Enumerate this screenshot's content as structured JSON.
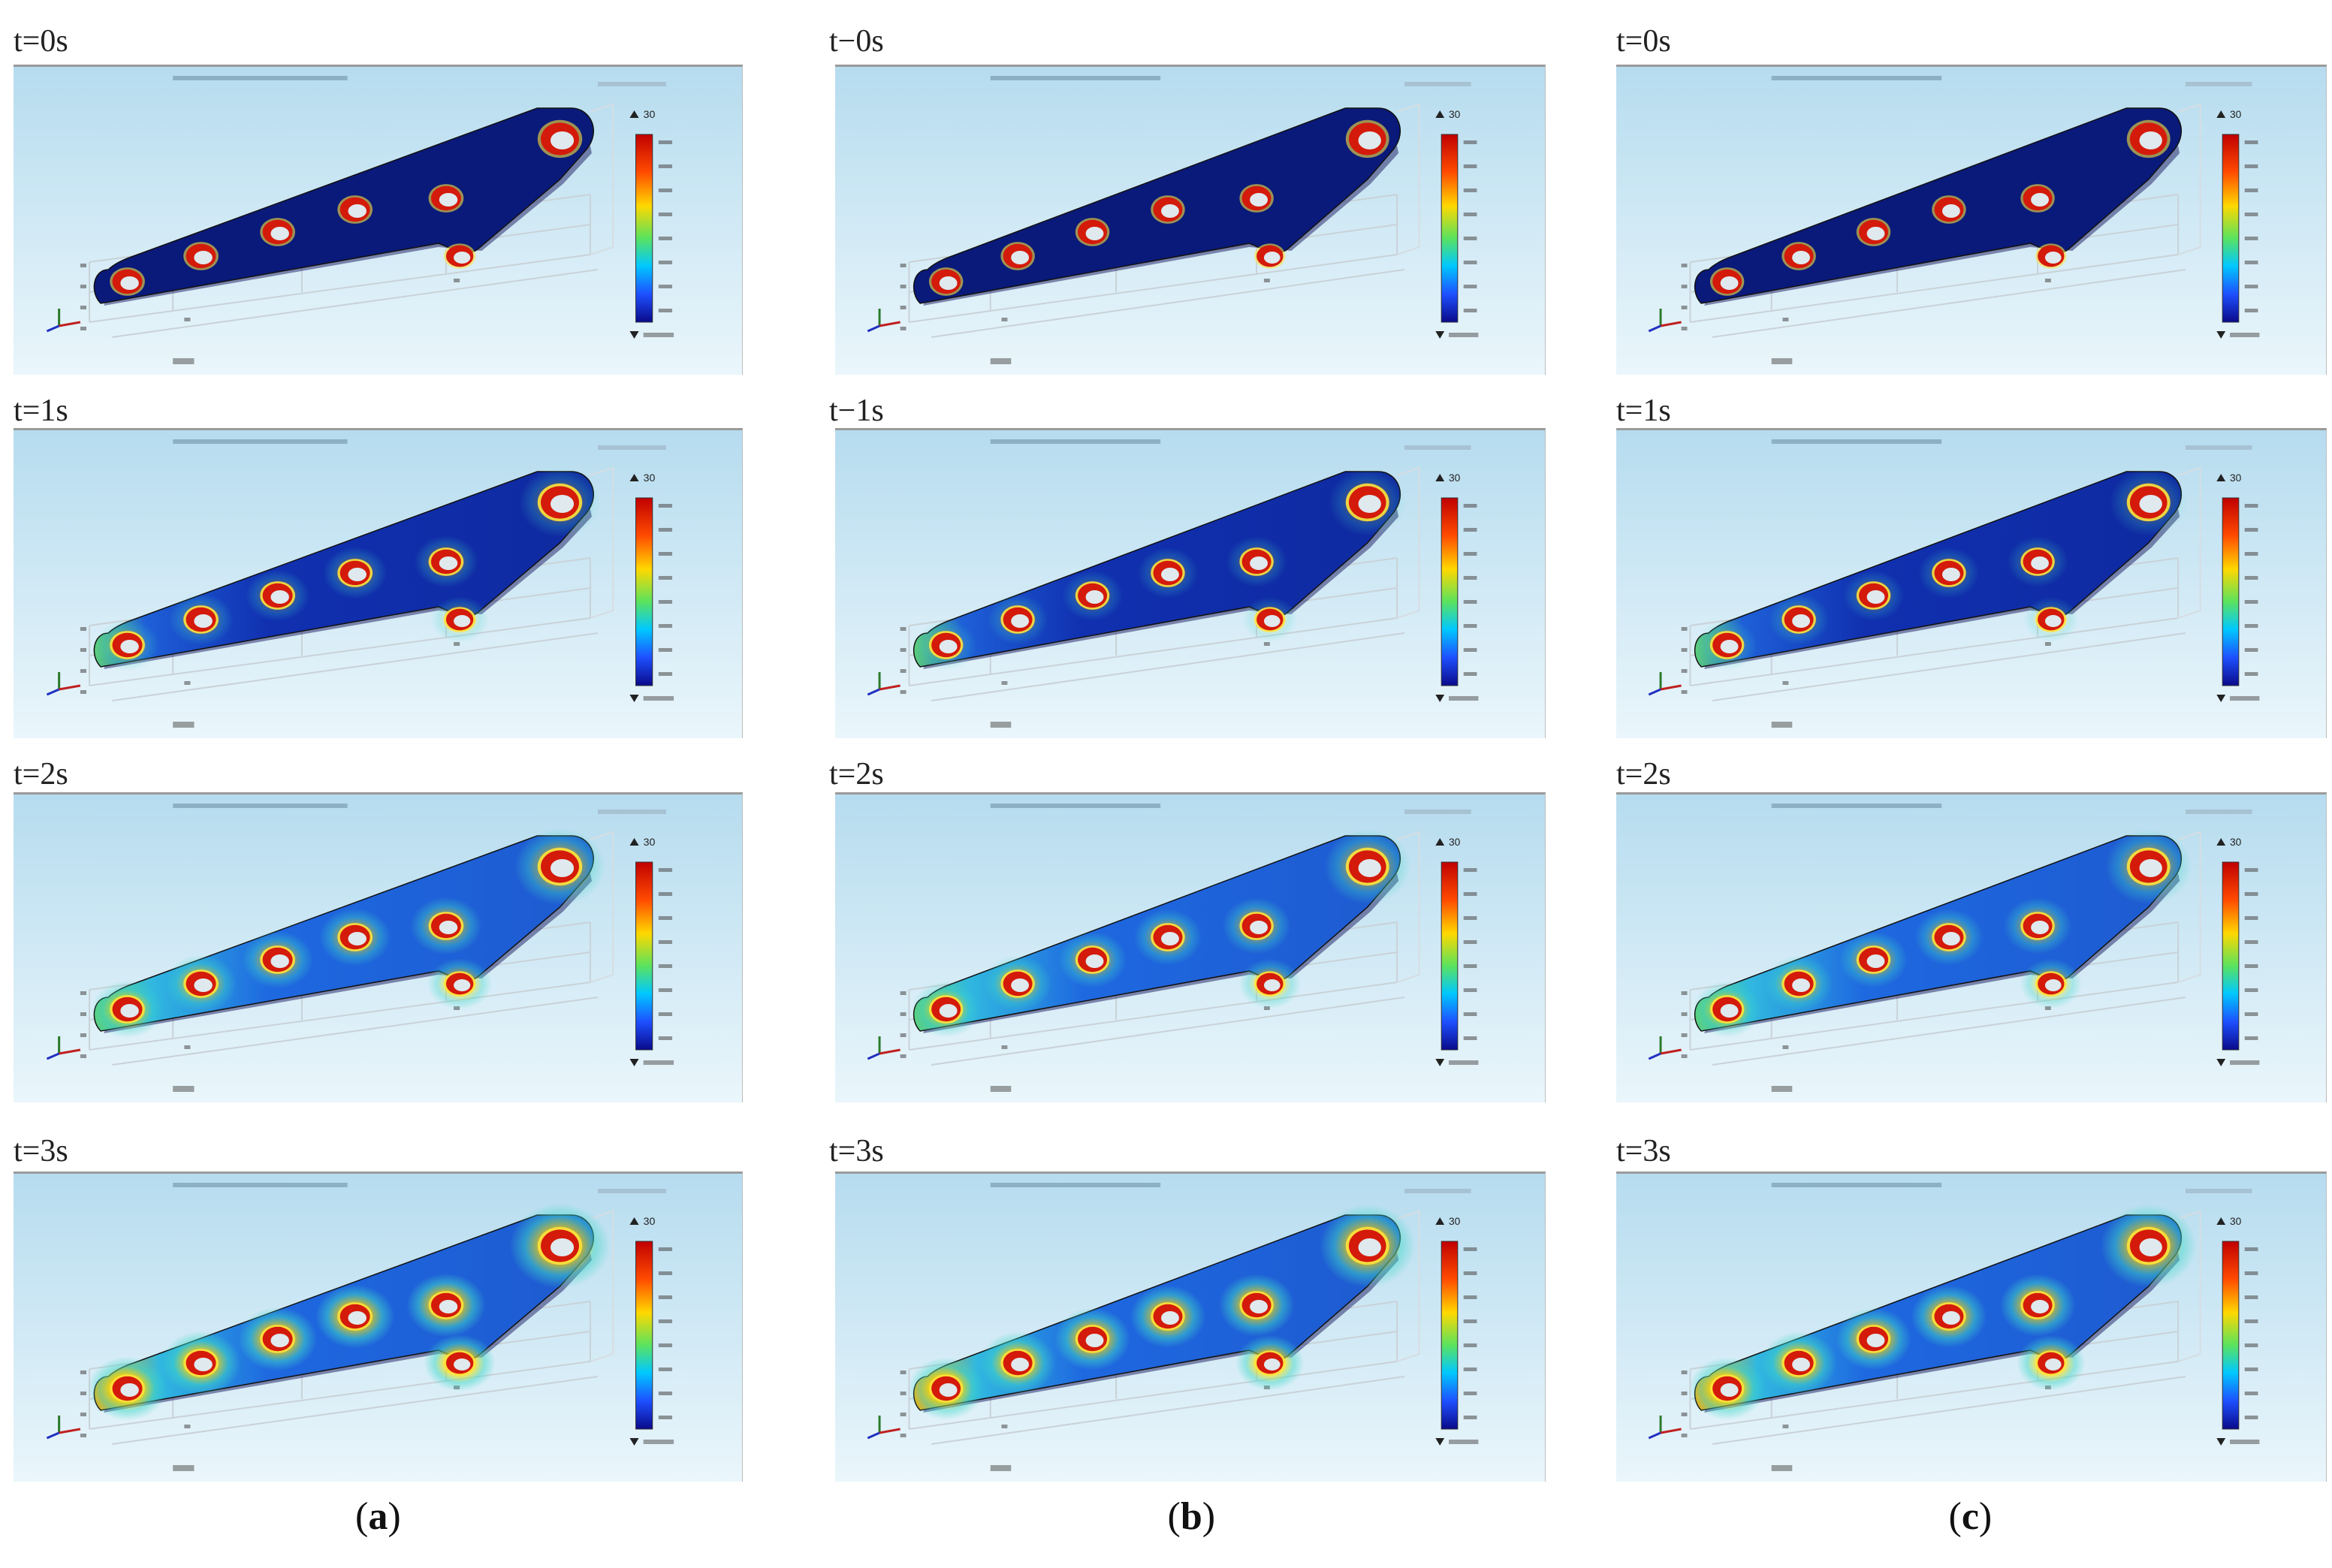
{
  "time_labels": [
    "t=0s",
    "t=1s",
    "t=2s",
    "t=3s"
  ],
  "column_time_labels": [
    [
      "t=0s",
      "t=1s",
      "t=2s",
      "t=3s"
    ],
    [
      "t−0s",
      "t−1s",
      "t=2s",
      "t=3s"
    ],
    [
      "t=0s",
      "t=1s",
      "t=2s",
      "t=3s"
    ]
  ],
  "columns": [
    {
      "label": "a",
      "colorbar_top": "30"
    },
    {
      "label": "b",
      "colorbar_top": "30"
    },
    {
      "label": "c",
      "colorbar_top": "30"
    }
  ],
  "heat_levels": [
    [
      0.0,
      0.35,
      0.6,
      0.85
    ],
    [
      0.0,
      0.3,
      0.55,
      0.8
    ],
    [
      0.0,
      0.3,
      0.55,
      0.8
    ]
  ],
  "colors": {
    "sky_top": "#b6dcef",
    "sky_bottom": "#eaf6fb",
    "plate_cold": "#0a1a7a",
    "hole_hot": "#d41a0a",
    "frame_border": "#9a9a9a"
  }
}
